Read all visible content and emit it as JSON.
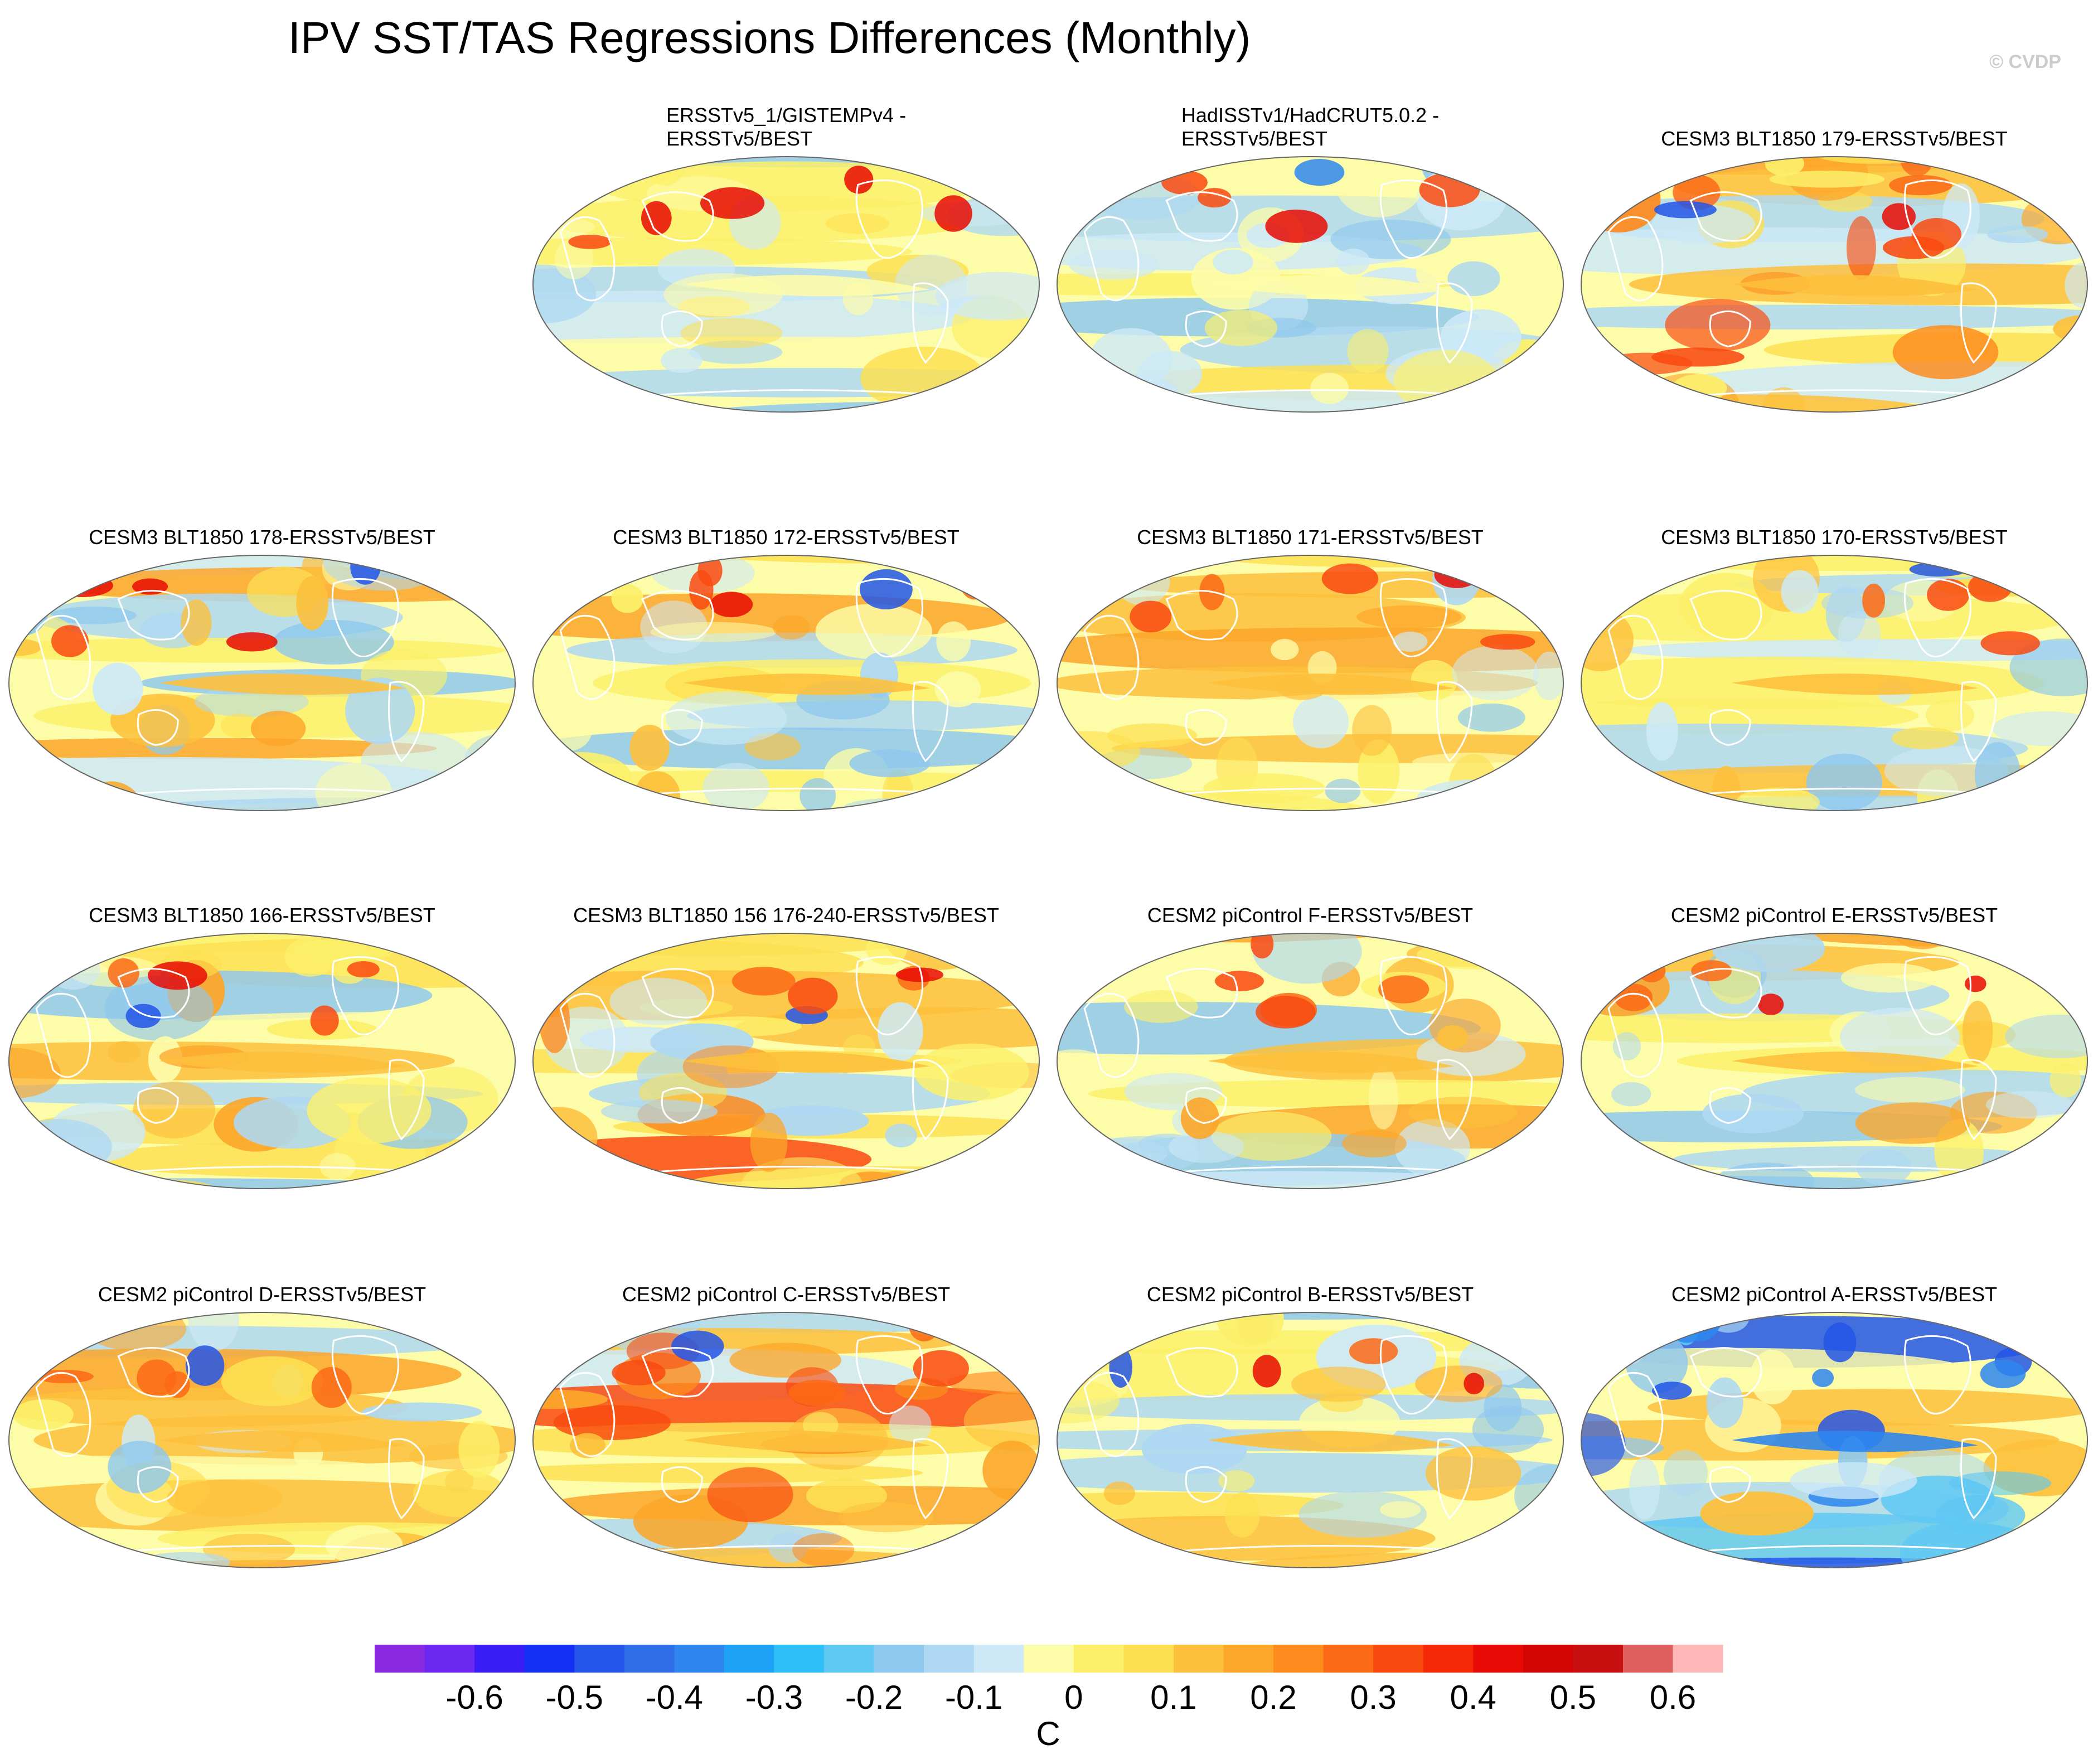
{
  "title": "IPV SST/TAS Regressions Differences (Monthly)",
  "watermark": "© CVDP",
  "colorbar": {
    "unit": "C",
    "colors": [
      "#8a2be2",
      "#6a28f0",
      "#3a1cf5",
      "#1530f5",
      "#2255e8",
      "#2f6ee8",
      "#2e86ee",
      "#1ea2f5",
      "#30c0f8",
      "#5fc8f3",
      "#8fc8ee",
      "#aed8f2",
      "#cde9f7",
      "#fdfca8",
      "#fcf06a",
      "#fde052",
      "#fdc03c",
      "#fca62a",
      "#fd8b1e",
      "#fb6a16",
      "#f94a10",
      "#f52808",
      "#e80a04",
      "#d40505",
      "#c80f0f",
      "#e06060",
      "#ffb8b8"
    ],
    "tick_labels": [
      "-0.6",
      "-0.5",
      "-0.4",
      "-0.3",
      "-0.2",
      "-0.1",
      "0",
      "0.1",
      "0.2",
      "0.3",
      "0.4",
      "0.5",
      "0.6"
    ]
  },
  "panels": [
    {
      "title": "ERSSTv5_1/GISTEMPv4 -\nERSSTv5/BEST",
      "two_line": true,
      "style": "cool"
    },
    {
      "title": "HadISSTv1/HadCRUT5.0.2 -\nERSSTv5/BEST",
      "two_line": true,
      "style": "cool"
    },
    {
      "title": "CESM3 BLT1850 179-ERSSTv5/BEST",
      "two_line": false,
      "style": "warm"
    },
    {
      "title": "CESM3 BLT1850 178-ERSSTv5/BEST",
      "two_line": false,
      "style": "mixed"
    },
    {
      "title": "CESM3 BLT1850 172-ERSSTv5/BEST",
      "two_line": false,
      "style": "mixed"
    },
    {
      "title": "CESM3 BLT1850 171-ERSSTv5/BEST",
      "two_line": false,
      "style": "mixed"
    },
    {
      "title": "CESM3 BLT1850 170-ERSSTv5/BEST",
      "two_line": false,
      "style": "mixed"
    },
    {
      "title": "CESM3 BLT1850 166-ERSSTv5/BEST",
      "two_line": false,
      "style": "mixed"
    },
    {
      "title": "CESM3 BLT1850 156 176-240-ERSSTv5/BEST",
      "two_line": false,
      "style": "warm"
    },
    {
      "title": "CESM2 piControl F-ERSSTv5/BEST",
      "two_line": false,
      "style": "mixed"
    },
    {
      "title": "CESM2 piControl E-ERSSTv5/BEST",
      "two_line": false,
      "style": "mixed"
    },
    {
      "title": "CESM2 piControl D-ERSSTv5/BEST",
      "two_line": false,
      "style": "mixed"
    },
    {
      "title": "CESM2 piControl C-ERSSTv5/BEST",
      "two_line": false,
      "style": "warm"
    },
    {
      "title": "CESM2 piControl B-ERSSTv5/BEST",
      "two_line": false,
      "style": "mixed"
    },
    {
      "title": "CESM2 piControl A-ERSSTv5/BEST",
      "two_line": false,
      "style": "cold"
    }
  ]
}
